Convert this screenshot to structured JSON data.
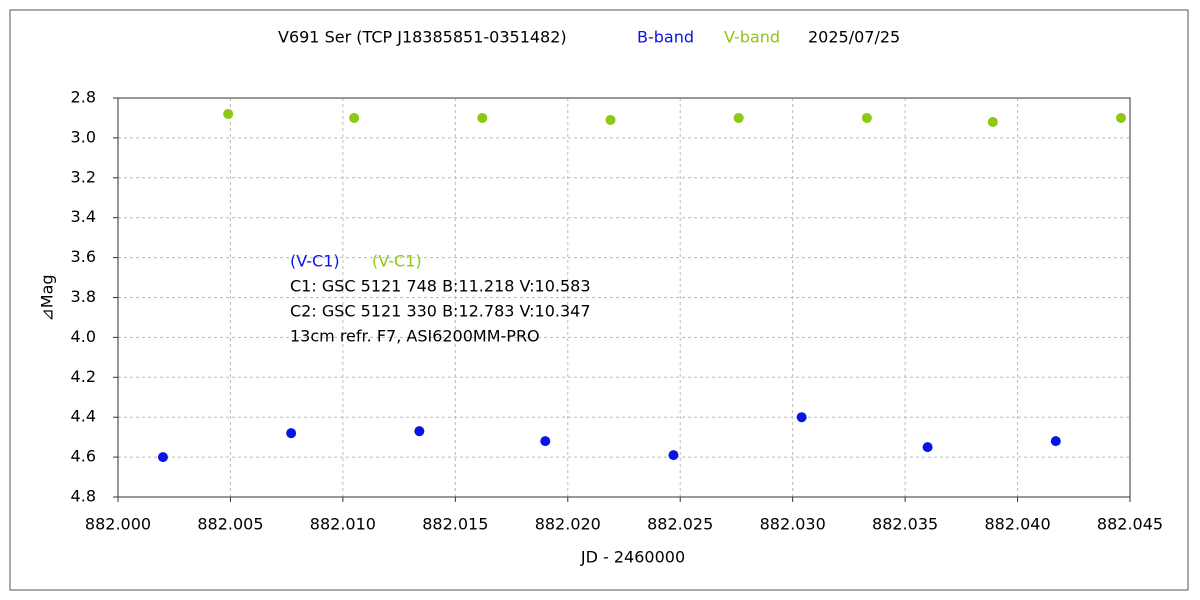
{
  "chart_data": {
    "type": "scatter",
    "title": "V691 Ser (TCP J18385851-0351482)",
    "date": "2025/07/25",
    "x_label": "JD - 2460000",
    "y_label": "⊿Mag",
    "y_inverted": true,
    "grid": true,
    "xlim": [
      882.0,
      882.045
    ],
    "xticks": [
      {
        "value": 882.0,
        "label": "882.000"
      },
      882.005,
      {
        "value": 882.01,
        "label": "882.010"
      },
      882.015,
      {
        "value": 882.02,
        "label": "882.020"
      },
      882.025,
      {
        "value": 882.03,
        "label": "882.030"
      },
      882.035,
      {
        "value": 882.04,
        "label": "882.040"
      },
      882.045
    ],
    "ylim": [
      2.8,
      4.8
    ],
    "yticks": [
      2.8,
      {
        "value": 3.0,
        "label": "3.0"
      },
      3.2,
      3.4,
      3.6,
      3.8,
      {
        "value": 4.0,
        "label": "4.0"
      },
      4.2,
      4.4,
      4.6,
      4.8
    ],
    "series": [
      {
        "name": "B-band",
        "color": "#0a14e6",
        "x": [
          882.002,
          882.0077,
          882.0134,
          882.019,
          882.0247,
          882.0304,
          882.036,
          882.0417
        ],
        "values": [
          4.6,
          4.48,
          4.47,
          4.52,
          4.59,
          4.4,
          4.55,
          4.52
        ]
      },
      {
        "name": "V-band",
        "color": "#8cc814",
        "x": [
          882.0049,
          882.0105,
          882.0162,
          882.0219,
          882.0276,
          882.0333,
          882.0389,
          882.0446
        ],
        "values": [
          2.88,
          2.9,
          2.9,
          2.91,
          2.9,
          2.9,
          2.92,
          2.9
        ]
      }
    ],
    "annotations": [
      {
        "text": "(V-C1)",
        "color": "#0a14e6"
      },
      {
        "text": "(V-C1)",
        "color": "#8cc814"
      },
      {
        "text": "C1: GSC 5121 748  B:11.218  V:10.583",
        "color": "#000000"
      },
      {
        "text": "C2: GSC 5121 330  B:12.783  V:10.347",
        "color": "#000000"
      },
      {
        "text": "13cm  refr.  F7,  ASI6200MM-PRO",
        "color": "#000000"
      }
    ]
  }
}
